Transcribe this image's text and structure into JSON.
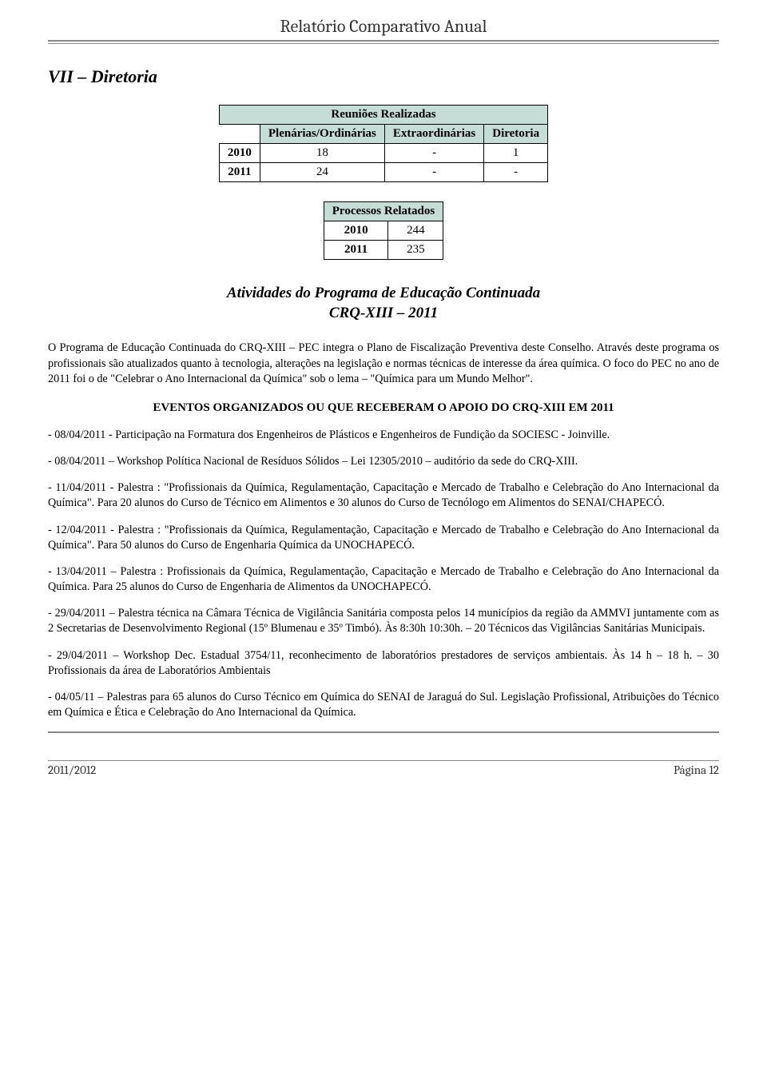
{
  "header": {
    "title": "Relatório Comparativo Anual"
  },
  "section": {
    "title": "VII – Diretoria"
  },
  "table1": {
    "title": "Reuniões Realizadas",
    "columns": [
      "",
      "Plenárias/Ordinárias",
      "Extraordinárias",
      "Diretoria"
    ],
    "rows": [
      [
        "2010",
        "18",
        "-",
        "1"
      ],
      [
        "2011",
        "24",
        "-",
        "-"
      ]
    ],
    "header_bg": "#c5ddd6"
  },
  "table2": {
    "title": "Processos Relatados",
    "rows": [
      [
        "2010",
        "244"
      ],
      [
        "2011",
        "235"
      ]
    ],
    "header_bg": "#c5ddd6"
  },
  "subsection": {
    "line1": "Atividades do Programa de Educação Continuada",
    "line2": "CRQ-XIII – 2011"
  },
  "intro": {
    "text": "O Programa de Educação Continuada do CRQ-XIII – PEC integra o Plano de Fiscalização Preventiva deste Conselho. Através deste programa os profissionais são atualizados quanto à tecnologia, alterações na legislação e normas técnicas de interesse da área química. O foco do PEC no ano de 2011 foi o de \"Celebrar o Ano Internacional da Química\" sob o lema – \"Química para um Mundo Melhor\"."
  },
  "eventos_title": "EVENTOS ORGANIZADOS OU QUE RECEBERAM O APOIO DO CRQ-XIII EM 2011",
  "events": [
    "- 08/04/2011 - Participação na Formatura dos Engenheiros de Plásticos e Engenheiros de Fundição da SOCIESC - Joinville.",
    "- 08/04/2011 – Workshop Política Nacional de Resíduos Sólidos – Lei 12305/2010 – auditório da sede do CRQ-XIII.",
    "- 11/04/2011 - Palestra : \"Profissionais da Química, Regulamentação, Capacitação e Mercado de Trabalho e Celebração do Ano Internacional da Química\". Para 20 alunos do Curso de Técnico em Alimentos e 30 alunos do Curso de Tecnólogo em Alimentos do SENAI/CHAPECÓ.",
    "- 12/04/2011 - Palestra : \"Profissionais da Química, Regulamentação, Capacitação e Mercado de Trabalho e Celebração do Ano Internacional da Química\". Para 50 alunos do Curso de Engenharia Química da UNOCHAPECÓ.",
    "- 13/04/2011 – Palestra : Profissionais da Química, Regulamentação, Capacitação e Mercado de Trabalho e Celebração do Ano Internacional da Química. Para 25 alunos do Curso de Engenharia de Alimentos da UNOCHAPECÓ.",
    "- 29/04/2011 – Palestra técnica na Câmara Técnica de Vigilância Sanitária composta pelos 14 municípios da região da AMMVI juntamente com as 2 Secretarias de Desenvolvimento Regional (15º Blumenau e 35º Timbó). Às 8:30h 10:30h. – 20 Técnicos das Vigilâncias Sanitárias Municipais.",
    "- 29/04/2011 – Workshop Dec. Estadual 3754/11, reconhecimento de laboratórios prestadores de serviços ambientais. Às 14 h – 18 h. – 30 Profissionais da área de Laboratórios Ambientais",
    "- 04/05/11 – Palestras para 65 alunos do Curso Técnico em Química do SENAI de Jaraguá do Sul. Legislação Profissional, Atribuições do Técnico em Química e Ética e Celebração do Ano Internacional da Química."
  ],
  "footer": {
    "left": "2011/2012",
    "right": "Página 12"
  }
}
